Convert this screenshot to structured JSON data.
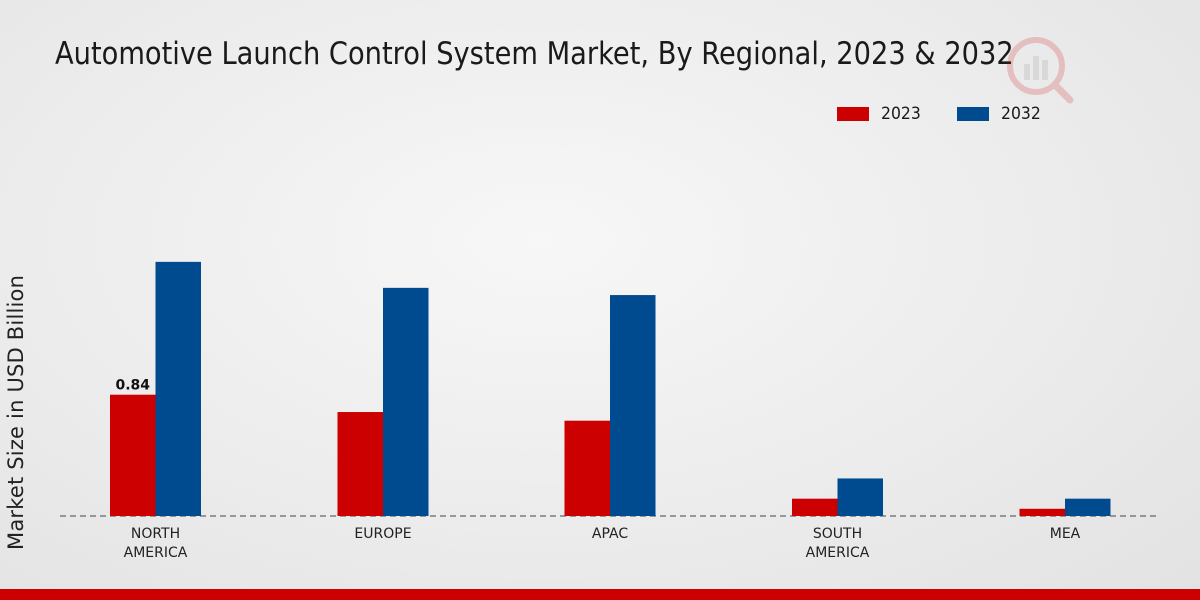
{
  "chart_data": {
    "type": "bar",
    "title": "Automotive Launch Control System Market, By Regional, 2023 & 2032",
    "ylabel": "Market Size in USD Billion",
    "xlabel": "",
    "categories": [
      [
        "NORTH",
        "AMERICA"
      ],
      [
        "EUROPE"
      ],
      [
        "APAC"
      ],
      [
        "SOUTH",
        "AMERICA"
      ],
      [
        "MEA"
      ]
    ],
    "series": [
      {
        "name": "2023",
        "color": "#cc0000",
        "values": [
          0.84,
          0.72,
          0.66,
          0.12,
          0.05
        ]
      },
      {
        "name": "2032",
        "color": "#004a8f",
        "values": [
          1.76,
          1.58,
          1.53,
          0.26,
          0.12
        ]
      }
    ],
    "data_labels": [
      {
        "series": 0,
        "index": 0,
        "text": "0.84"
      }
    ],
    "ylim": [
      0,
      2.5
    ],
    "grid": false,
    "legend_position": "top-right",
    "baseline_style": "dashed"
  }
}
